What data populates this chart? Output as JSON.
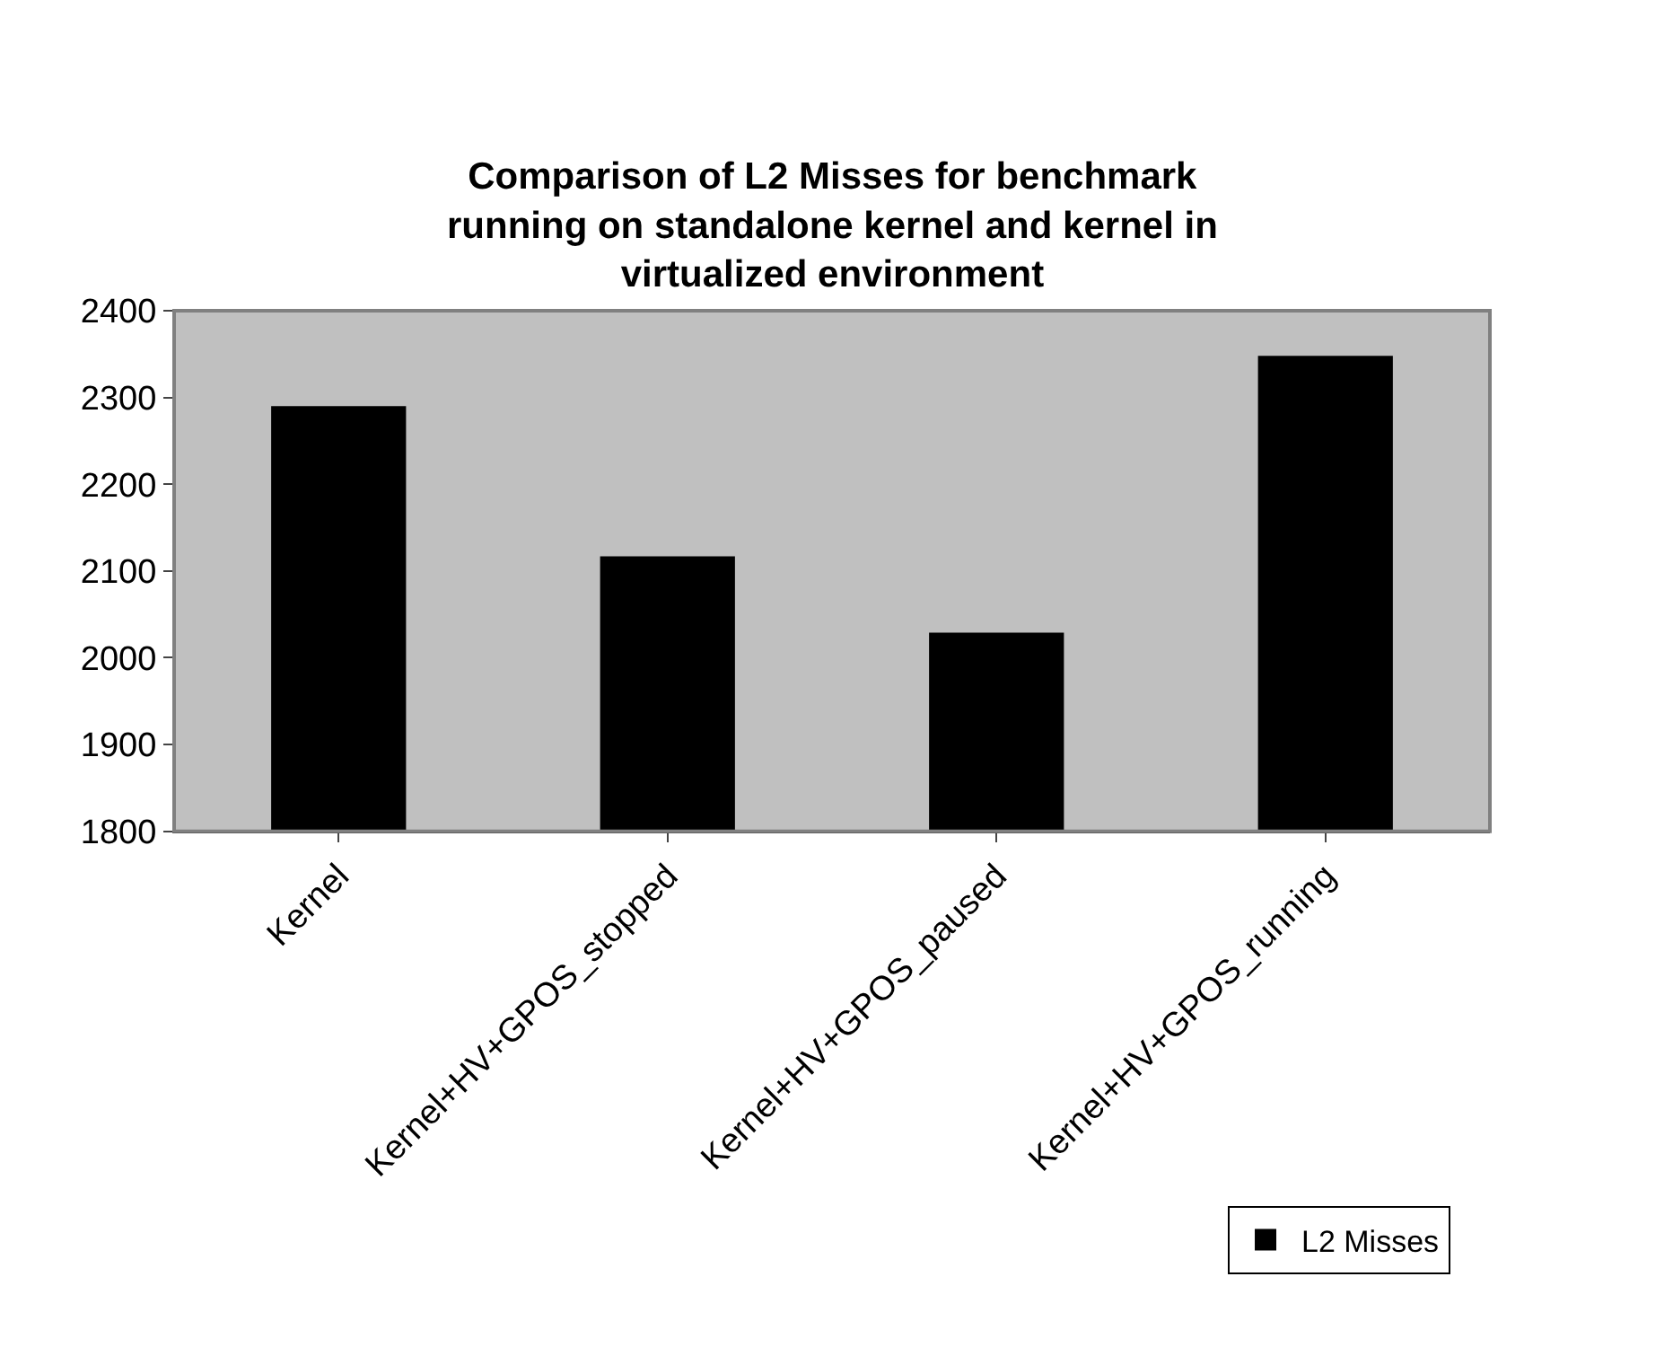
{
  "chart_data": {
    "type": "bar",
    "title": "Comparison of L2 Misses for benchmark running on standalone kernel and kernel in virtualized environment",
    "categories": [
      "Kernel",
      "Kernel+HV+GPOS_stopped",
      "Kernel+HV+GPOS_paused",
      "Kernel+HV+GPOS_running"
    ],
    "series": [
      {
        "name": "L2 Misses",
        "color": "#000000",
        "values": [
          2290,
          2117,
          2029,
          2348
        ]
      }
    ],
    "ylim": [
      1800,
      2400
    ],
    "yticks": [
      1800,
      1900,
      2000,
      2100,
      2200,
      2300,
      2400
    ],
    "grid": false,
    "legend": "bottom right"
  }
}
